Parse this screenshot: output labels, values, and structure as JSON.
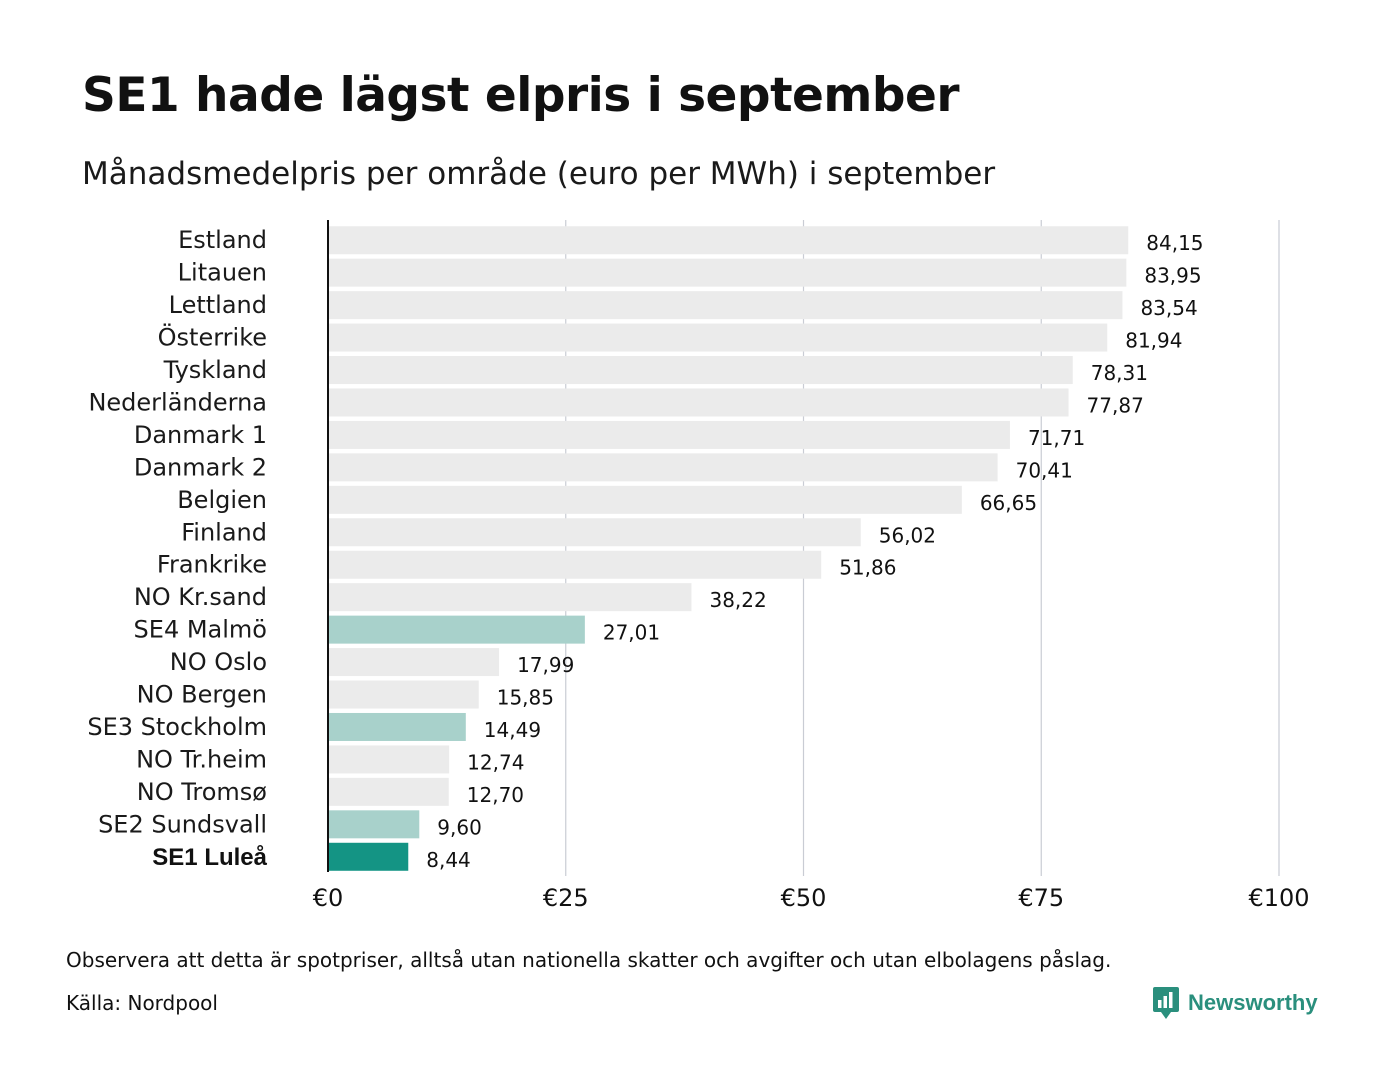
{
  "header": {
    "title": "SE1 hade lägst elpris i september",
    "subtitle": "Månadsmedelpris per område (euro per MWh) i september"
  },
  "chart_data": {
    "type": "bar",
    "orientation": "horizontal",
    "title": "SE1 hade lägst elpris i september",
    "subtitle": "Månadsmedelpris per område (euro per MWh) i september",
    "categories": [
      "Estland",
      "Litauen",
      "Lettland",
      "Österrike",
      "Tyskland",
      "Nederländerna",
      "Danmark 1",
      "Danmark 2",
      "Belgien",
      "Finland",
      "Frankrike",
      "NO Kr.sand",
      "SE4 Malmö",
      "NO Oslo",
      "NO Bergen",
      "SE3 Stockholm",
      "NO Tr.heim",
      "NO Tromsø",
      "SE2 Sundsvall",
      "SE1 Luleå"
    ],
    "values": [
      84.15,
      83.95,
      83.54,
      81.94,
      78.31,
      77.87,
      71.71,
      70.41,
      66.65,
      56.02,
      51.86,
      38.22,
      27.01,
      17.99,
      15.85,
      14.49,
      12.74,
      12.7,
      9.6,
      8.44
    ],
    "value_labels": [
      "84,15",
      "83,95",
      "83,54",
      "81,94",
      "78,31",
      "77,87",
      "71,71",
      "70,41",
      "66,65",
      "56,02",
      "51,86",
      "38,22",
      "27,01",
      "17,99",
      "15,85",
      "14,49",
      "12,74",
      "12,70",
      "9,60",
      "8,44"
    ],
    "highlight": [
      "",
      "",
      "",
      "",
      "",
      "",
      "",
      "",
      "",
      "",
      "",
      "",
      "swedish",
      "",
      "",
      "swedish",
      "",
      "",
      "swedish",
      "primary"
    ],
    "xlim": [
      0,
      100
    ],
    "x_ticks": [
      0,
      25,
      50,
      75,
      100
    ],
    "x_tick_labels": [
      "€0",
      "€25",
      "€50",
      "€75",
      "€100"
    ],
    "xlabel": "",
    "ylabel": "",
    "grid": "vertical",
    "colors": {
      "default": "#ebebeb",
      "swedish": "#a8d1cb",
      "primary": "#149484",
      "grid": "#c9ccd4",
      "axis": "#111111"
    }
  },
  "footer": {
    "note": "Observera att detta är spotpriser, alltså utan nationella skatter och avgifter och utan elbolagens påslag.",
    "source": "Källa: Nordpool",
    "logo_text": "Newsworthy",
    "logo_icon": "bar-chart-speech-bubble-icon"
  }
}
